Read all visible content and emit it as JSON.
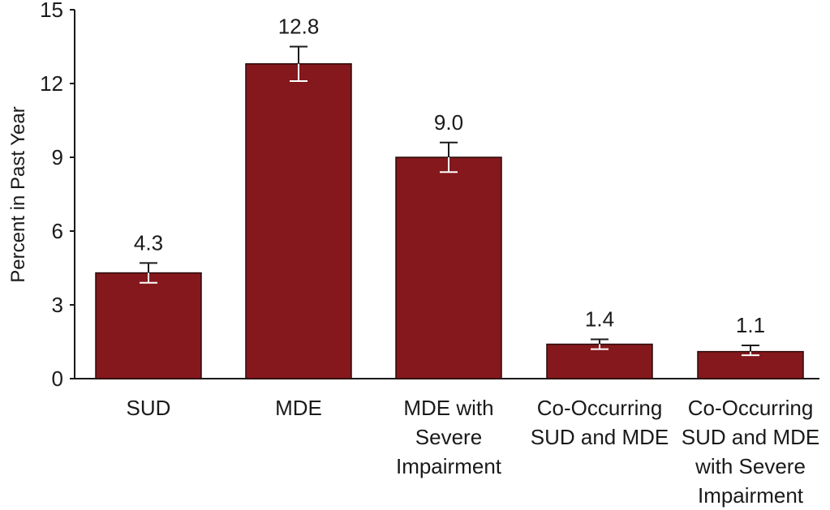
{
  "chart_data": {
    "type": "bar",
    "categories": [
      [
        "SUD"
      ],
      [
        "MDE"
      ],
      [
        "MDE with",
        "Severe",
        "Impairment"
      ],
      [
        "Co-Occurring",
        "SUD and MDE"
      ],
      [
        "Co-Occurring",
        "SUD and MDE",
        "with Severe",
        "Impairment"
      ]
    ],
    "values": [
      4.3,
      12.8,
      9.0,
      1.4,
      1.1
    ],
    "value_labels": [
      "4.3",
      "12.8",
      "9.0",
      "1.4",
      "1.1"
    ],
    "error_bars": [
      {
        "low": 3.9,
        "high": 4.7
      },
      {
        "low": 12.1,
        "high": 13.5
      },
      {
        "low": 8.4,
        "high": 9.6
      },
      {
        "low": 1.2,
        "high": 1.6
      },
      {
        "low": 0.95,
        "high": 1.35
      }
    ],
    "ylabel": "Percent in Past Year",
    "xlabel": "",
    "ylim": [
      0,
      15
    ],
    "yticks": [
      0,
      3,
      6,
      9,
      12,
      15
    ],
    "grid": false,
    "colors": {
      "bar": "#84181c",
      "bar_edge": "#2a0a0a",
      "axis": "#1a1a1a",
      "error_bar": "#ffffff"
    }
  }
}
